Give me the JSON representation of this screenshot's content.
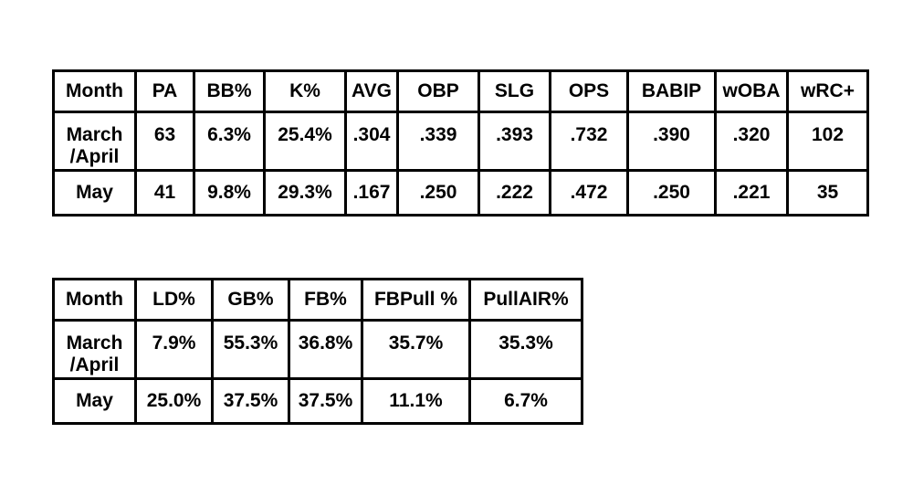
{
  "table1": {
    "headers": [
      "Month",
      "PA",
      "BB%",
      "K%",
      "AVG",
      "OBP",
      "SLG",
      "OPS",
      "BABIP",
      "wOBA",
      "wRC+"
    ],
    "rows": [
      [
        "March\n/April",
        "63",
        "6.3%",
        "25.4%",
        ".304",
        ".339",
        ".393",
        ".732",
        ".390",
        ".320",
        "102"
      ],
      [
        "May",
        "41",
        "9.8%",
        "29.3%",
        ".167",
        ".250",
        ".222",
        ".472",
        ".250",
        ".221",
        "35"
      ]
    ]
  },
  "table2": {
    "headers": [
      "Month",
      "LD%",
      "GB%",
      "FB%",
      "FBPull %",
      "PullAIR%"
    ],
    "rows": [
      [
        "March\n/April",
        "7.9%",
        "55.3%",
        "36.8%",
        "35.7%",
        "35.3%"
      ],
      [
        "May",
        "25.0%",
        "37.5%",
        "37.5%",
        "11.1%",
        "6.7%"
      ]
    ]
  }
}
